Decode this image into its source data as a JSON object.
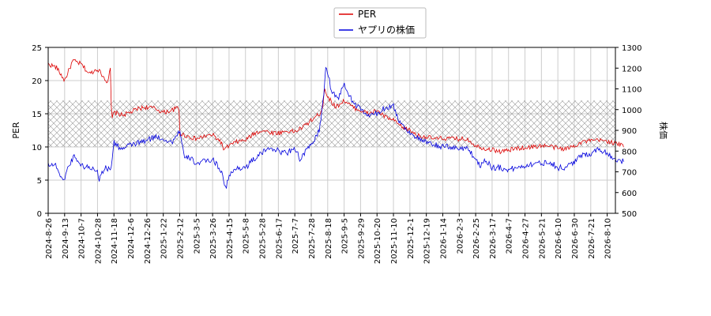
{
  "chart_data": {
    "type": "line",
    "title": "",
    "xlabel": "",
    "ylabel_left": "PER",
    "ylabel_right": "株価",
    "x_tick_labels": [
      "2024-8-26",
      "2024-9-13",
      "2024-10-7",
      "2024-10-28",
      "2024-11-18",
      "2024-12-6",
      "2024-12-26",
      "2025-1-22",
      "2025-2-12",
      "2025-3-5",
      "2025-3-26",
      "2025-4-15",
      "2025-5-8",
      "2025-5-28",
      "2025-6-17",
      "2025-7-7",
      "2025-7-28",
      "2025-8-18",
      "2025-9-5",
      "2025-9-29",
      "2025-10-20",
      "2025-11-10",
      "2025-12-1",
      "2025-12-19",
      "2026-1-14",
      "2026-2-3",
      "2026-2-25",
      "2026-3-17",
      "2026-4-7",
      "2026-4-27",
      "2026-5-21",
      "2026-6-10",
      "2026-6-30",
      "2026-7-21",
      "2026-8-10"
    ],
    "ylim_left": [
      0,
      25
    ],
    "yticks_left": [
      0,
      5,
      10,
      15,
      20,
      25
    ],
    "ylim_right": [
      500,
      1300
    ],
    "yticks_right": [
      500,
      600,
      700,
      800,
      900,
      1000,
      1100,
      1200,
      1300
    ],
    "shaded_band_left": [
      10,
      17
    ],
    "grid": true,
    "legend_position": "top-center",
    "series": [
      {
        "name": "PER",
        "axis": "left",
        "color": "#dd0000",
        "anchors": [
          [
            0,
            22.5
          ],
          [
            0.5,
            22
          ],
          [
            1,
            20
          ],
          [
            1.5,
            23
          ],
          [
            2,
            22.5
          ],
          [
            2.5,
            21
          ],
          [
            3,
            21.8
          ],
          [
            3.6,
            19.8
          ],
          [
            3.8,
            21.8
          ],
          [
            3.85,
            14
          ],
          [
            4,
            15.2
          ],
          [
            4.5,
            14.8
          ],
          [
            5,
            15.2
          ],
          [
            5.5,
            15.8
          ],
          [
            6,
            16
          ],
          [
            6.5,
            15.8
          ],
          [
            7,
            15.2
          ],
          [
            7.5,
            15.5
          ],
          [
            7.95,
            16
          ],
          [
            8,
            12
          ],
          [
            8.5,
            11.6
          ],
          [
            9,
            11.2
          ],
          [
            9.5,
            11.6
          ],
          [
            10,
            11.8
          ],
          [
            10.5,
            10.8
          ],
          [
            10.7,
            9.5
          ],
          [
            11,
            10.2
          ],
          [
            11.5,
            10.8
          ],
          [
            12,
            11
          ],
          [
            12.5,
            12
          ],
          [
            13,
            12.5
          ],
          [
            13.5,
            12.2
          ],
          [
            14,
            12.1
          ],
          [
            14.5,
            12.4
          ],
          [
            15,
            12.3
          ],
          [
            15.5,
            13
          ],
          [
            16,
            14
          ],
          [
            16.5,
            15
          ],
          [
            16.7,
            16
          ],
          [
            16.8,
            19
          ],
          [
            17,
            17.5
          ],
          [
            17.5,
            16
          ],
          [
            18,
            17
          ],
          [
            18.5,
            16
          ],
          [
            19,
            15.5
          ],
          [
            19.5,
            15
          ],
          [
            20,
            15.5
          ],
          [
            20.5,
            14.5
          ],
          [
            21,
            14
          ],
          [
            21.5,
            13
          ],
          [
            22,
            12.5
          ],
          [
            22.5,
            11.7
          ],
          [
            23,
            11.5
          ],
          [
            23.5,
            11.2
          ],
          [
            24,
            11.3
          ],
          [
            25,
            11.2
          ],
          [
            25.5,
            11.2
          ],
          [
            26,
            10.2
          ],
          [
            26.5,
            9.8
          ],
          [
            27,
            9.6
          ],
          [
            27.5,
            9.3
          ],
          [
            28,
            9.5
          ],
          [
            28.5,
            9.8
          ],
          [
            29,
            9.9
          ],
          [
            29.5,
            10
          ],
          [
            30,
            10.2
          ],
          [
            30.5,
            10.1
          ],
          [
            31,
            9.8
          ],
          [
            31.5,
            9.7
          ],
          [
            32,
            10.2
          ],
          [
            32.5,
            10.8
          ],
          [
            33,
            10.9
          ],
          [
            33.5,
            11
          ],
          [
            34,
            10.9
          ],
          [
            34.5,
            10.5
          ],
          [
            35,
            10.2
          ]
        ]
      },
      {
        "name": "ヤプリの株価",
        "axis": "right",
        "color": "#0000dd",
        "anchors": [
          [
            0,
            740
          ],
          [
            0.5,
            730
          ],
          [
            0.9,
            650
          ],
          [
            1.2,
            720
          ],
          [
            1.6,
            780
          ],
          [
            2,
            730
          ],
          [
            2.5,
            720
          ],
          [
            3,
            710
          ],
          [
            3.1,
            660
          ],
          [
            3.4,
            720
          ],
          [
            3.8,
            710
          ],
          [
            4,
            840
          ],
          [
            4.3,
            820
          ],
          [
            4.6,
            810
          ],
          [
            5,
            830
          ],
          [
            5.5,
            840
          ],
          [
            6,
            850
          ],
          [
            6.5,
            870
          ],
          [
            7,
            860
          ],
          [
            7.5,
            840
          ],
          [
            8,
            900
          ],
          [
            8.3,
            760
          ],
          [
            8.6,
            770
          ],
          [
            9,
            740
          ],
          [
            9.5,
            750
          ],
          [
            10,
            760
          ],
          [
            10.5,
            710
          ],
          [
            10.8,
            620
          ],
          [
            11,
            680
          ],
          [
            11.5,
            720
          ],
          [
            12,
            720
          ],
          [
            12.5,
            760
          ],
          [
            13,
            790
          ],
          [
            13.5,
            820
          ],
          [
            14,
            800
          ],
          [
            14.5,
            790
          ],
          [
            15,
            820
          ],
          [
            15.3,
            760
          ],
          [
            15.7,
            800
          ],
          [
            16,
            830
          ],
          [
            16.5,
            900
          ],
          [
            16.8,
            1100
          ],
          [
            16.9,
            1220
          ],
          [
            17.2,
            1100
          ],
          [
            17.6,
            1050
          ],
          [
            18,
            1120
          ],
          [
            18.5,
            1040
          ],
          [
            19,
            1000
          ],
          [
            19.5,
            970
          ],
          [
            20,
            980
          ],
          [
            20.5,
            1010
          ],
          [
            21,
            1020
          ],
          [
            21.3,
            950
          ],
          [
            21.6,
            920
          ],
          [
            22,
            890
          ],
          [
            22.5,
            860
          ],
          [
            23,
            840
          ],
          [
            23.5,
            830
          ],
          [
            24,
            820
          ],
          [
            24.5,
            820
          ],
          [
            25,
            810
          ],
          [
            25.5,
            820
          ],
          [
            25.8,
            780
          ],
          [
            26,
            760
          ],
          [
            26.3,
            730
          ],
          [
            26.6,
            760
          ],
          [
            27,
            720
          ],
          [
            27.5,
            720
          ],
          [
            28,
            710
          ],
          [
            28.5,
            720
          ],
          [
            29,
            730
          ],
          [
            29.5,
            740
          ],
          [
            30,
            740
          ],
          [
            30.5,
            750
          ],
          [
            31,
            720
          ],
          [
            31.5,
            720
          ],
          [
            32,
            750
          ],
          [
            32.5,
            780
          ],
          [
            33,
            790
          ],
          [
            33.5,
            810
          ],
          [
            34,
            790
          ],
          [
            34.5,
            760
          ],
          [
            35,
            750
          ]
        ]
      }
    ]
  }
}
